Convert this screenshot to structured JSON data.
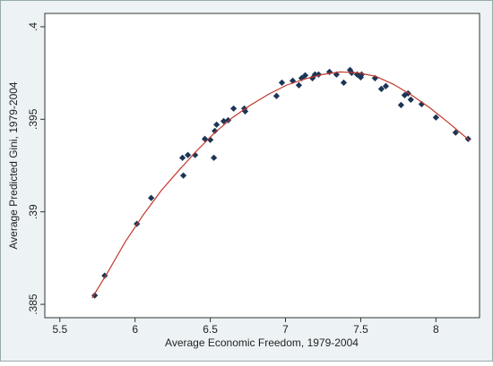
{
  "chart_data": {
    "type": "scatter",
    "xlabel": "Average Economic Freedom, 1979-2004",
    "ylabel": "Average Predicted Gini, 1979-2004",
    "xlim": [
      5.4,
      8.29
    ],
    "ylim": [
      0.38428,
      0.40072
    ],
    "xticks": [
      5.5,
      6,
      6.5,
      7,
      7.5,
      8
    ],
    "yticks": [
      {
        "value": 0.385,
        "label": ".385"
      },
      {
        "value": 0.39,
        "label": ".39"
      },
      {
        "value": 0.395,
        "label": ".395"
      },
      {
        "value": 0.4,
        "label": ".4"
      }
    ],
    "series": [
      {
        "type": "scatter",
        "color": "#1c3557",
        "x": [
          5.732,
          5.798,
          6.012,
          6.107,
          6.321,
          6.315,
          6.351,
          6.399,
          6.464,
          6.5,
          6.524,
          6.53,
          6.542,
          6.589,
          6.619,
          6.655,
          6.726,
          6.732,
          6.94,
          6.976,
          7.048,
          7.089,
          7.107,
          7.131,
          7.179,
          7.196,
          7.22,
          7.292,
          7.339,
          7.387,
          7.429,
          7.44,
          7.476,
          7.506,
          7.5,
          7.595,
          7.637,
          7.667,
          7.768,
          7.792,
          7.815,
          7.833,
          7.905,
          8.0,
          8.131,
          8.214
        ],
        "values": [
          0.38548,
          0.38655,
          0.38935,
          0.39075,
          0.39196,
          0.39292,
          0.39307,
          0.39307,
          0.39394,
          0.39389,
          0.39292,
          0.39437,
          0.39471,
          0.3949,
          0.39495,
          0.39558,
          0.39558,
          0.39543,
          0.39626,
          0.39698,
          0.39708,
          0.39684,
          0.39722,
          0.39737,
          0.39722,
          0.39742,
          0.39742,
          0.39756,
          0.39742,
          0.39698,
          0.39766,
          0.39751,
          0.39742,
          0.39742,
          0.39727,
          0.39722,
          0.39664,
          0.39679,
          0.39577,
          0.3963,
          0.3964,
          0.39606,
          0.39582,
          0.3951,
          0.39428,
          0.39394
        ]
      },
      {
        "type": "line",
        "color": "#c0392b",
        "x": [
          5.714,
          5.815,
          5.935,
          6.054,
          6.173,
          6.292,
          6.411,
          6.53,
          6.649,
          6.768,
          6.887,
          7.006,
          7.125,
          7.244,
          7.363,
          7.482,
          7.601,
          7.72,
          7.839,
          7.958,
          8.077,
          8.226
        ],
        "values": [
          0.38534,
          0.38669,
          0.38838,
          0.38983,
          0.39114,
          0.39225,
          0.39331,
          0.39428,
          0.3951,
          0.39577,
          0.39635,
          0.39684,
          0.39717,
          0.39742,
          0.39756,
          0.39751,
          0.39732,
          0.39688,
          0.3963,
          0.39563,
          0.39486,
          0.39384
        ]
      }
    ]
  }
}
